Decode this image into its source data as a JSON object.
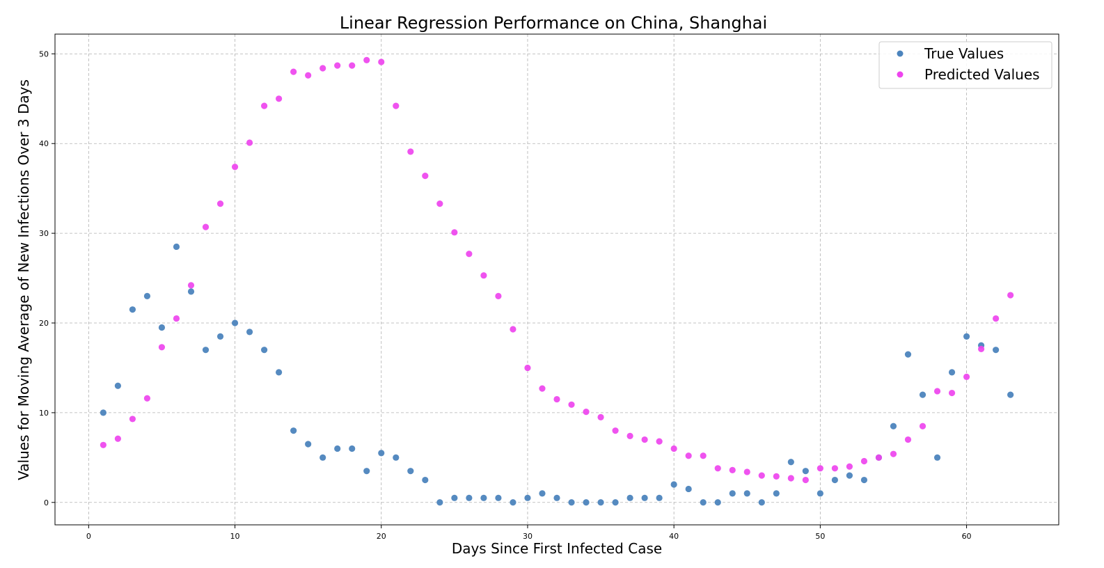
{
  "chart_data": {
    "type": "scatter",
    "title": "Linear Regression Performance on China, Shanghai",
    "xlabel": "Days Since First Infected Case",
    "ylabel": "Values for Moving Average of New Infections Over 3 Days",
    "xlim": [
      -2.3,
      66.3
    ],
    "ylim": [
      -2.5,
      52.2
    ],
    "xticks": [
      0,
      10,
      20,
      30,
      40,
      50,
      60
    ],
    "yticks": [
      0,
      10,
      20,
      30,
      40,
      50
    ],
    "grid": true,
    "legend_position": "top-right",
    "x": [
      1,
      2,
      3,
      4,
      5,
      6,
      7,
      8,
      9,
      10,
      11,
      12,
      13,
      14,
      15,
      16,
      17,
      18,
      19,
      20,
      21,
      22,
      23,
      24,
      25,
      26,
      27,
      28,
      29,
      30,
      31,
      32,
      33,
      34,
      35,
      36,
      37,
      38,
      39,
      40,
      41,
      42,
      43,
      44,
      45,
      46,
      47,
      48,
      49,
      50,
      51,
      52,
      53,
      54,
      55,
      56,
      57,
      58,
      59,
      60,
      61,
      62,
      63
    ],
    "series": [
      {
        "name": "True Values",
        "color": "#4c84bd",
        "values": [
          10,
          13,
          21.5,
          23,
          19.5,
          28.5,
          23.5,
          17,
          18.5,
          20,
          19,
          17,
          14.5,
          8,
          6.5,
          5,
          6,
          6,
          3.5,
          5.5,
          5,
          3.5,
          2.5,
          0,
          0.5,
          0.5,
          0.5,
          0.5,
          0,
          0.5,
          1,
          0.5,
          0,
          0,
          0,
          0,
          0.5,
          0.5,
          0.5,
          2,
          1.5,
          0,
          0,
          1,
          1,
          0,
          1,
          4.5,
          3.5,
          1,
          2.5,
          3,
          2.5,
          5,
          8.5,
          16.5,
          12,
          5,
          14.5,
          18.5,
          17.5,
          17,
          12
        ]
      },
      {
        "name": "Predicted Values",
        "color": "#ee44ee",
        "values": [
          6.4,
          7.1,
          9.3,
          11.6,
          17.3,
          20.5,
          24.2,
          30.7,
          33.3,
          37.4,
          40.1,
          44.2,
          45,
          48,
          47.6,
          48.4,
          48.7,
          48.7,
          49.3,
          49.1,
          44.2,
          39.1,
          36.4,
          33.3,
          30.1,
          27.7,
          25.3,
          23,
          19.3,
          15,
          12.7,
          11.5,
          10.9,
          10.1,
          9.5,
          8,
          7.4,
          7,
          6.8,
          6,
          5.2,
          5.2,
          3.8,
          3.6,
          3.4,
          3,
          2.9,
          2.7,
          2.5,
          3.8,
          3.8,
          4,
          4.6,
          5,
          5.4,
          7,
          8.5,
          12.4,
          12.2,
          14,
          17.1,
          20.5,
          23.1
        ]
      }
    ]
  }
}
